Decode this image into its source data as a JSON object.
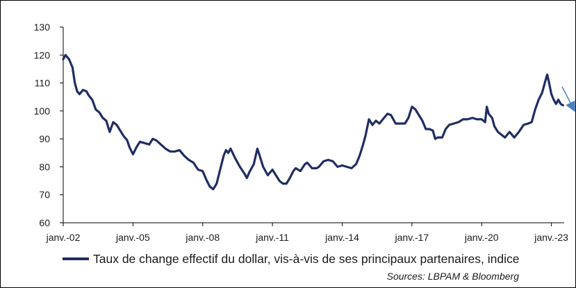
{
  "chart_data": {
    "type": "line",
    "title": "",
    "xlabel": "",
    "ylabel": "",
    "ylim": [
      60,
      130
    ],
    "yticks": [
      60,
      70,
      80,
      90,
      100,
      110,
      120,
      130
    ],
    "xlim": [
      2002.0,
      2023.55
    ],
    "xticks": [
      {
        "x": 2002,
        "label": "janv.-02"
      },
      {
        "x": 2005,
        "label": "janv.-05"
      },
      {
        "x": 2008,
        "label": "janv.-08"
      },
      {
        "x": 2011,
        "label": "janv.-11"
      },
      {
        "x": 2014,
        "label": "janv.-14"
      },
      {
        "x": 2017,
        "label": "janv.-17"
      },
      {
        "x": 2020,
        "label": "janv.-20"
      },
      {
        "x": 2023,
        "label": "janv.-23"
      }
    ],
    "grid": false,
    "legend_position": "bottom",
    "series": [
      {
        "name": "Taux de change effectif du dollar, vis-à-vis de ses principaux partenaires, indice",
        "color": "#1f2d63",
        "points": [
          [
            2002.0,
            118.5
          ],
          [
            2002.1,
            120.0
          ],
          [
            2002.25,
            118.5
          ],
          [
            2002.4,
            115.5
          ],
          [
            2002.5,
            110.0
          ],
          [
            2002.6,
            107.0
          ],
          [
            2002.7,
            106.0
          ],
          [
            2002.85,
            107.5
          ],
          [
            2003.0,
            107.0
          ],
          [
            2003.1,
            105.5
          ],
          [
            2003.25,
            104.0
          ],
          [
            2003.4,
            100.5
          ],
          [
            2003.55,
            99.5
          ],
          [
            2003.7,
            97.5
          ],
          [
            2003.85,
            96.5
          ],
          [
            2004.0,
            92.5
          ],
          [
            2004.15,
            96.0
          ],
          [
            2004.3,
            95.0
          ],
          [
            2004.45,
            93.0
          ],
          [
            2004.6,
            91.0
          ],
          [
            2004.75,
            89.5
          ],
          [
            2004.85,
            87.0
          ],
          [
            2005.0,
            84.5
          ],
          [
            2005.15,
            87.0
          ],
          [
            2005.3,
            89.0
          ],
          [
            2005.5,
            88.5
          ],
          [
            2005.7,
            88.0
          ],
          [
            2005.85,
            90.0
          ],
          [
            2006.0,
            89.5
          ],
          [
            2006.2,
            88.0
          ],
          [
            2006.4,
            86.5
          ],
          [
            2006.6,
            85.5
          ],
          [
            2006.8,
            85.5
          ],
          [
            2007.0,
            86.0
          ],
          [
            2007.2,
            84.0
          ],
          [
            2007.4,
            82.5
          ],
          [
            2007.6,
            81.5
          ],
          [
            2007.8,
            79.0
          ],
          [
            2008.0,
            78.5
          ],
          [
            2008.15,
            75.5
          ],
          [
            2008.3,
            73.0
          ],
          [
            2008.45,
            72.0
          ],
          [
            2008.6,
            74.0
          ],
          [
            2008.75,
            79.0
          ],
          [
            2008.9,
            84.0
          ],
          [
            2009.0,
            86.0
          ],
          [
            2009.1,
            85.0
          ],
          [
            2009.2,
            86.5
          ],
          [
            2009.4,
            83.0
          ],
          [
            2009.6,
            80.0
          ],
          [
            2009.8,
            77.5
          ],
          [
            2009.9,
            76.0
          ],
          [
            2010.0,
            78.0
          ],
          [
            2010.2,
            81.0
          ],
          [
            2010.35,
            86.5
          ],
          [
            2010.45,
            84.0
          ],
          [
            2010.6,
            80.0
          ],
          [
            2010.8,
            77.0
          ],
          [
            2011.0,
            79.0
          ],
          [
            2011.15,
            77.0
          ],
          [
            2011.3,
            75.0
          ],
          [
            2011.45,
            74.0
          ],
          [
            2011.6,
            74.0
          ],
          [
            2011.75,
            76.0
          ],
          [
            2011.9,
            78.5
          ],
          [
            2012.0,
            79.5
          ],
          [
            2012.2,
            78.5
          ],
          [
            2012.4,
            81.0
          ],
          [
            2012.5,
            81.5
          ],
          [
            2012.7,
            79.5
          ],
          [
            2012.9,
            79.5
          ],
          [
            2013.0,
            80.0
          ],
          [
            2013.2,
            82.0
          ],
          [
            2013.4,
            82.5
          ],
          [
            2013.6,
            82.0
          ],
          [
            2013.8,
            80.0
          ],
          [
            2014.0,
            80.5
          ],
          [
            2014.2,
            80.0
          ],
          [
            2014.4,
            79.5
          ],
          [
            2014.6,
            81.0
          ],
          [
            2014.75,
            84.0
          ],
          [
            2014.9,
            88.0
          ],
          [
            2015.0,
            91.0
          ],
          [
            2015.15,
            97.0
          ],
          [
            2015.3,
            95.0
          ],
          [
            2015.45,
            96.5
          ],
          [
            2015.6,
            95.5
          ],
          [
            2015.8,
            97.5
          ],
          [
            2015.95,
            99.0
          ],
          [
            2016.1,
            98.5
          ],
          [
            2016.3,
            95.5
          ],
          [
            2016.5,
            95.5
          ],
          [
            2016.7,
            95.5
          ],
          [
            2016.85,
            97.5
          ],
          [
            2017.0,
            101.5
          ],
          [
            2017.15,
            100.5
          ],
          [
            2017.3,
            98.5
          ],
          [
            2017.45,
            96.5
          ],
          [
            2017.6,
            93.5
          ],
          [
            2017.75,
            93.5
          ],
          [
            2017.9,
            93.0
          ],
          [
            2018.0,
            90.0
          ],
          [
            2018.1,
            90.5
          ],
          [
            2018.3,
            90.5
          ],
          [
            2018.45,
            93.5
          ],
          [
            2018.6,
            95.0
          ],
          [
            2018.8,
            95.5
          ],
          [
            2019.0,
            96.0
          ],
          [
            2019.2,
            97.0
          ],
          [
            2019.4,
            97.0
          ],
          [
            2019.6,
            97.5
          ],
          [
            2019.8,
            97.0
          ],
          [
            2020.0,
            97.0
          ],
          [
            2020.15,
            96.0
          ],
          [
            2020.22,
            101.5
          ],
          [
            2020.3,
            99.0
          ],
          [
            2020.45,
            97.5
          ],
          [
            2020.55,
            94.5
          ],
          [
            2020.7,
            92.5
          ],
          [
            2020.85,
            91.5
          ],
          [
            2021.0,
            90.5
          ],
          [
            2021.2,
            92.5
          ],
          [
            2021.4,
            90.5
          ],
          [
            2021.6,
            92.5
          ],
          [
            2021.8,
            95.0
          ],
          [
            2022.0,
            95.5
          ],
          [
            2022.15,
            96.0
          ],
          [
            2022.3,
            100.5
          ],
          [
            2022.45,
            104.0
          ],
          [
            2022.6,
            106.5
          ],
          [
            2022.75,
            111.0
          ],
          [
            2022.82,
            113.0
          ],
          [
            2022.9,
            110.0
          ],
          [
            2023.0,
            106.0
          ],
          [
            2023.1,
            104.0
          ],
          [
            2023.2,
            102.5
          ],
          [
            2023.3,
            104.0
          ],
          [
            2023.4,
            102.5
          ],
          [
            2023.5,
            102.0
          ]
        ]
      }
    ]
  },
  "legend": {
    "label": "Taux de change effectif du dollar, vis-à-vis de ses principaux partenaires, indice"
  },
  "source_note": "Sources: LBPAM & Bloomberg",
  "colors": {
    "series": "#1f2d63",
    "trend_arrow": "#4a7ebb",
    "axis": "#000000"
  }
}
